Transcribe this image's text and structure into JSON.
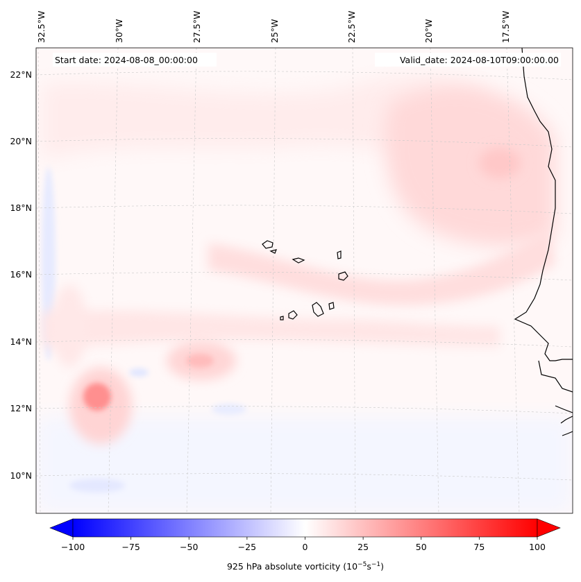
{
  "map": {
    "start_label": "Start date: 2024-08-08_00:00:00",
    "valid_label": "Valid_date: 2024-08-10T09:00:00.00",
    "lon_labels": [
      "32.5°W",
      "30°W",
      "27.5°W",
      "25°W",
      "22.5°W",
      "20°W",
      "17.5°W"
    ],
    "lat_labels": [
      "22°N",
      "20°N",
      "18°N",
      "16°N",
      "14°N",
      "12°N",
      "10°N"
    ],
    "field": "925 hPa absolute vorticity"
  },
  "colorbar": {
    "label_prefix": "925 hPa absolute vorticity (10",
    "label_exp1": "−5",
    "label_mid": "s",
    "label_exp2": "−1",
    "label_suffix": ")",
    "tick_labels": [
      "−100",
      "−75",
      "−50",
      "−25",
      "0",
      "25",
      "50",
      "75",
      "100"
    ],
    "min": -100,
    "max": 100,
    "colors": {
      "negative": "#0000ff",
      "zero": "#ffffff",
      "positive": "#ff0000"
    }
  }
}
